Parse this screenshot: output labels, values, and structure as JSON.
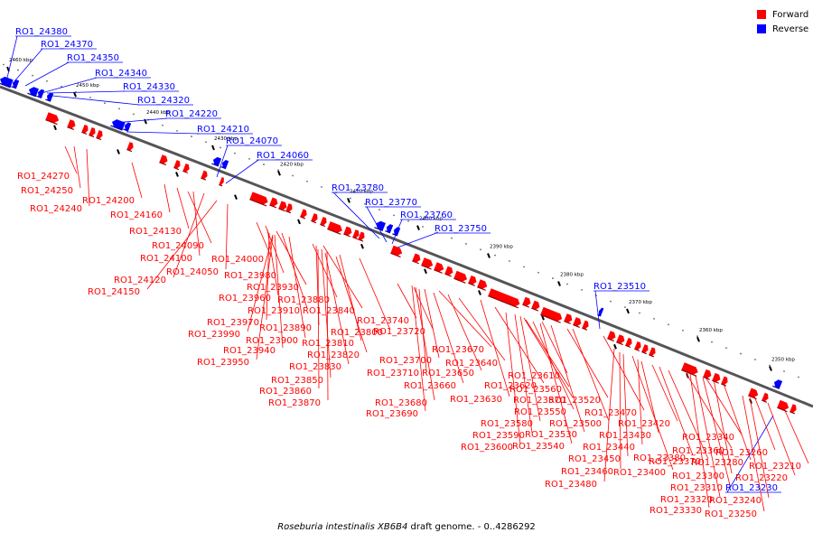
{
  "colors": {
    "forward": "#ff0000",
    "reverse": "#0000ff",
    "backbone": "#555555",
    "text": "#000000"
  },
  "legend": {
    "forward": "Forward",
    "reverse": "Reverse"
  },
  "caption": {
    "species": "Roseburia intestinalis XB6B4",
    "rest": "draft genome. - 0..4286292"
  },
  "ruler_labels": [
    "2460 kbp",
    "2450 kbp",
    "2440 kbp",
    "2430 kbp",
    "2420 kbp",
    "2410 kbp",
    "2400 kbp",
    "2390 kbp",
    "2380 kbp",
    "2370 kbp",
    "2360 kbp",
    "2350 kbp"
  ],
  "reverse_genes": [
    "RO1_24380",
    "RO1_24370",
    "RO1_24350",
    "RO1_24340",
    "RO1_24330",
    "RO1_24320",
    "RO1_24220",
    "RO1_24210",
    "RO1_24070",
    "RO1_24060",
    "RO1_23780",
    "RO1_23770",
    "RO1_23760",
    "RO1_23750",
    "RO1_23510",
    "RO1_23230"
  ],
  "forward_genes": [
    "RO1_24270",
    "RO1_24250",
    "RO1_24240",
    "RO1_24200",
    "RO1_24160",
    "RO1_24130",
    "RO1_24090",
    "RO1_24100",
    "RO1_24120",
    "RO1_24150",
    "RO1_24050",
    "RO1_24000",
    "RO1_23980",
    "RO1_23960",
    "RO1_23930",
    "RO1_23910",
    "RO1_23880",
    "RO1_23840",
    "RO1_23970",
    "RO1_23990",
    "RO1_23890",
    "RO1_23900",
    "RO1_23800",
    "RO1_23810",
    "RO1_23940",
    "RO1_23820",
    "RO1_23950",
    "RO1_23830",
    "RO1_23850",
    "RO1_23860",
    "RO1_23870",
    "RO1_23740",
    "RO1_23720",
    "RO1_23670",
    "RO1_23700",
    "RO1_23640",
    "RO1_23710",
    "RO1_23650",
    "RO1_23660",
    "RO1_23620",
    "RO1_23630",
    "RO1_23680",
    "RO1_23690",
    "RO1_23610",
    "RO1_23560",
    "RO1_23570",
    "RO1_23520",
    "RO1_23550",
    "RO1_23470",
    "RO1_23580",
    "RO1_23500",
    "RO1_23590",
    "RO1_23530",
    "RO1_23600",
    "RO1_23540",
    "RO1_23420",
    "RO1_23430",
    "RO1_23440",
    "RO1_23450",
    "RO1_23460",
    "RO1_23480",
    "RO1_23400",
    "RO1_23340",
    "RO1_23360",
    "RO1_23370",
    "RO1_23380",
    "RO1_23280",
    "RO1_23300",
    "RO1_23310",
    "RO1_23320",
    "RO1_23330",
    "RO1_23260",
    "RO1_23210",
    "RO1_23220",
    "RO1_23240",
    "RO1_23250"
  ]
}
